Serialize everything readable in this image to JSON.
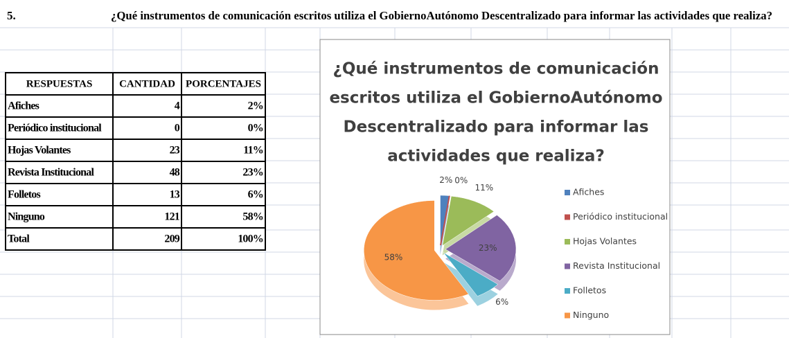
{
  "header": {
    "number": "5.",
    "question": "¿Qué  instrumentos de comunicación escritos utiliza el GobiernoAutónomo Descentralizado para  informar  las actividades que realiza?"
  },
  "table": {
    "headers": [
      "RESPUESTAS",
      "CANTIDAD",
      "PORCENTAJES"
    ],
    "rows": [
      [
        "Afiches",
        "4",
        "2%"
      ],
      [
        "Periódico institucional",
        "0",
        "0%"
      ],
      [
        "Hojas Volantes",
        "23",
        "11%"
      ],
      [
        "Revista Institucional",
        "48",
        "23%"
      ],
      [
        "Folletos",
        "13",
        "6%"
      ],
      [
        "Ninguno",
        "121",
        "58%"
      ],
      [
        "Total",
        "209",
        "100%"
      ]
    ]
  },
  "chart_data": {
    "type": "pie",
    "title": [
      "¿Qué  instrumentos de comunicación",
      "escritos utiliza el GobiernoAutónomo",
      "Descentralizado para  informar  las",
      "actividades que realiza?"
    ],
    "categories": [
      "Afiches",
      "Periódico institucional",
      "Hojas Volantes",
      "Revista Institucional",
      "Folletos",
      "Ninguno"
    ],
    "values": [
      2,
      0,
      11,
      23,
      6,
      58
    ],
    "value_labels": [
      "2%",
      "0%",
      "11%",
      "23%",
      "6%",
      "58%"
    ],
    "colors": [
      "#4f81bd",
      "#c0504d",
      "#9bbb59",
      "#8064a2",
      "#4bacc6",
      "#f79646"
    ],
    "legend": "right"
  }
}
